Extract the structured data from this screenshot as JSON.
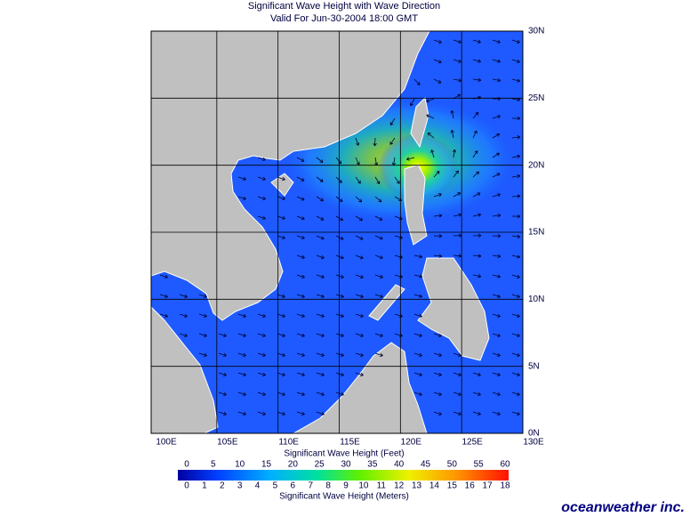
{
  "title": "Significant Wave Height with Wave Direction",
  "subtitle": "Valid For Jun-30-2004 18:00 GMT",
  "map": {
    "lon_labels": [
      "100E",
      "105E",
      "110E",
      "115E",
      "120E",
      "125E",
      "130E"
    ],
    "lat_labels": [
      "30N",
      "25N",
      "20N",
      "15N",
      "10N",
      "5N",
      "0N"
    ]
  },
  "colorbar": {
    "feet_title": "Significant Wave Height (Feet)",
    "feet_ticks": [
      "0",
      "5",
      "10",
      "15",
      "20",
      "25",
      "30",
      "35",
      "40",
      "45",
      "50",
      "55",
      "60"
    ],
    "meters_title": "Significant Wave Height (Meters)",
    "meters_ticks": [
      "0",
      "1",
      "2",
      "3",
      "4",
      "5",
      "6",
      "7",
      "8",
      "9",
      "10",
      "11",
      "12",
      "13",
      "14",
      "15",
      "16",
      "17",
      "18"
    ]
  },
  "brand": "oceanweather inc."
}
